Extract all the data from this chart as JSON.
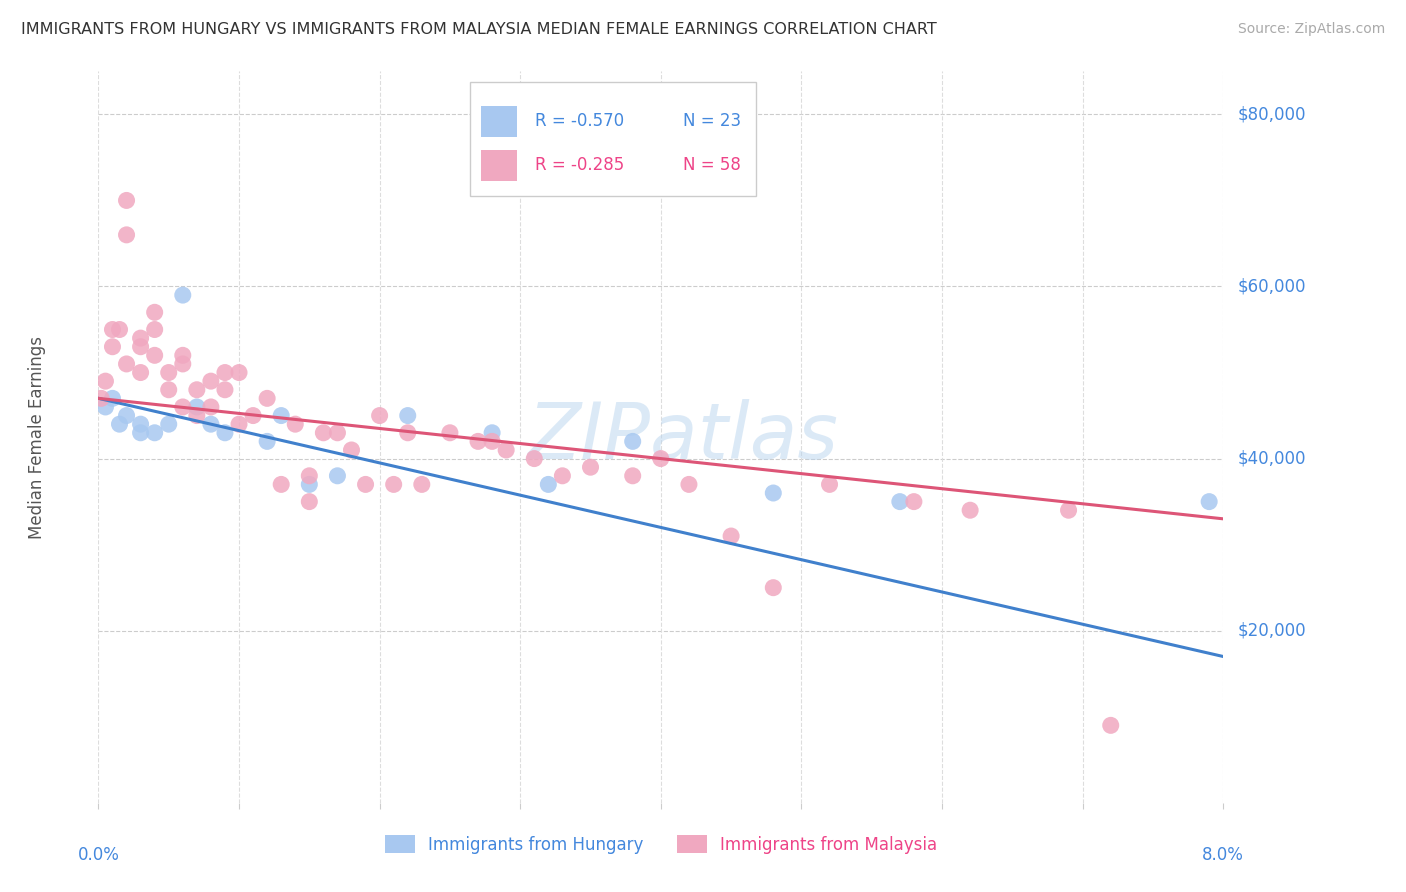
{
  "title": "IMMIGRANTS FROM HUNGARY VS IMMIGRANTS FROM MALAYSIA MEDIAN FEMALE EARNINGS CORRELATION CHART",
  "source": "Source: ZipAtlas.com",
  "ylabel": "Median Female Earnings",
  "yticks": [
    0,
    20000,
    40000,
    60000,
    80000
  ],
  "ytick_labels": [
    "",
    "$20,000",
    "$40,000",
    "$60,000",
    "$80,000"
  ],
  "xmin": 0.0,
  "xmax": 0.08,
  "ymin": 0,
  "ymax": 85000,
  "legend_blue_r": "R = -0.570",
  "legend_blue_n": "N = 23",
  "legend_pink_r": "R = -0.285",
  "legend_pink_n": "N = 58",
  "legend_label_blue": "Immigrants from Hungary",
  "legend_label_pink": "Immigrants from Malaysia",
  "color_blue": "#a8c8f0",
  "color_pink": "#f0a8c0",
  "color_line_blue": "#4080cc",
  "color_line_pink": "#dd5577",
  "color_text_blue": "#4488dd",
  "color_text_pink": "#ee4488",
  "color_title": "#333333",
  "color_axis_labels": "#4488dd",
  "color_source": "#aaaaaa",
  "background_color": "#ffffff",
  "watermark": "ZIPatlas",
  "reg_blue_slope": -375000,
  "reg_blue_intercept": 47000,
  "reg_pink_slope": -175000,
  "reg_pink_intercept": 47000,
  "hungary_x": [
    0.0005,
    0.001,
    0.0015,
    0.002,
    0.003,
    0.003,
    0.004,
    0.005,
    0.006,
    0.007,
    0.008,
    0.009,
    0.012,
    0.013,
    0.015,
    0.017,
    0.022,
    0.028,
    0.032,
    0.038,
    0.048,
    0.057,
    0.079
  ],
  "hungary_y": [
    46000,
    47000,
    44000,
    45000,
    44000,
    43000,
    43000,
    44000,
    59000,
    46000,
    44000,
    43000,
    42000,
    45000,
    37000,
    38000,
    45000,
    43000,
    37000,
    42000,
    36000,
    35000,
    35000
  ],
  "malaysia_x": [
    0.0002,
    0.0005,
    0.001,
    0.001,
    0.0015,
    0.002,
    0.002,
    0.002,
    0.003,
    0.003,
    0.003,
    0.004,
    0.004,
    0.004,
    0.005,
    0.005,
    0.006,
    0.006,
    0.006,
    0.007,
    0.007,
    0.008,
    0.008,
    0.009,
    0.009,
    0.01,
    0.01,
    0.011,
    0.012,
    0.013,
    0.014,
    0.015,
    0.015,
    0.016,
    0.017,
    0.018,
    0.019,
    0.02,
    0.021,
    0.022,
    0.023,
    0.025,
    0.027,
    0.028,
    0.029,
    0.031,
    0.033,
    0.035,
    0.038,
    0.04,
    0.042,
    0.045,
    0.048,
    0.052,
    0.058,
    0.062,
    0.069,
    0.072
  ],
  "malaysia_y": [
    47000,
    49000,
    53000,
    55000,
    55000,
    66000,
    70000,
    51000,
    54000,
    53000,
    50000,
    57000,
    55000,
    52000,
    48000,
    50000,
    52000,
    51000,
    46000,
    48000,
    45000,
    49000,
    46000,
    50000,
    48000,
    44000,
    50000,
    45000,
    47000,
    37000,
    44000,
    38000,
    35000,
    43000,
    43000,
    41000,
    37000,
    45000,
    37000,
    43000,
    37000,
    43000,
    42000,
    42000,
    41000,
    40000,
    38000,
    39000,
    38000,
    40000,
    37000,
    31000,
    25000,
    37000,
    35000,
    34000,
    34000,
    9000
  ]
}
